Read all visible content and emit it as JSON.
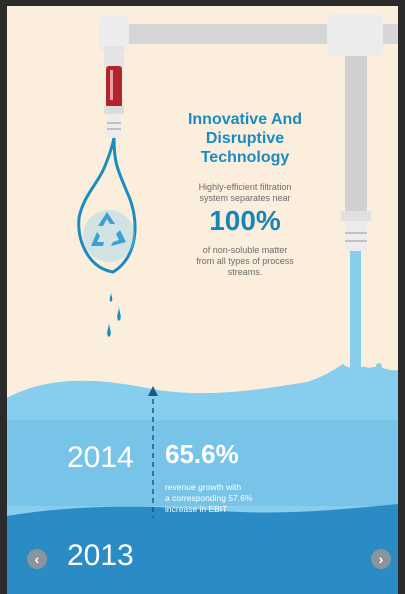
{
  "colors": {
    "cream": "#fbeedd",
    "accent": "#1b8cbf",
    "water_light": "#86cdee",
    "water_mid": "#4aa6d6",
    "water_dark": "#2b8bc4",
    "pipe": "#d4d4d4",
    "thermometer": "#b3232b"
  },
  "feature": {
    "title_lines": [
      "Innovative And",
      "Disruptive",
      "Technology"
    ],
    "desc_top_lines": [
      "Highly-efficient filtration",
      "system separates near"
    ],
    "highlight": "100%",
    "desc_bottom_lines": [
      "of non-soluble matter",
      "from all types of process",
      "streams."
    ]
  },
  "timeline": {
    "current_year": "2014",
    "growth_value": "65.6%",
    "growth_lines": [
      "revenue growth with",
      "a corresponding 57.6%",
      "increase in EBIT"
    ],
    "previous_year": "2013"
  },
  "nav": {
    "prev_icon": "chevron-left-icon",
    "next_icon": "chevron-right-icon",
    "prev_glyph": "‹",
    "next_glyph": "›"
  }
}
